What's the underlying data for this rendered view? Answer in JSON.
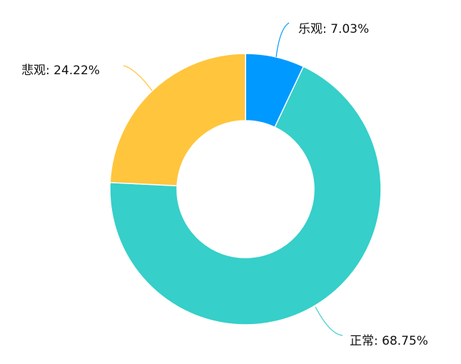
{
  "chart_data": {
    "type": "pie",
    "variant": "donut",
    "categories": [
      "乐观",
      "正常",
      "悲观"
    ],
    "values": [
      7.03,
      68.75,
      24.22
    ],
    "unit": "%",
    "labels": [
      "乐观: 7.03%",
      "正常: 68.75%",
      "悲观: 24.22%"
    ],
    "colors": [
      "#0099ff",
      "#36cfc9",
      "#ffc53d"
    ],
    "start": "top",
    "direction": "clockwise",
    "legend": "none"
  }
}
